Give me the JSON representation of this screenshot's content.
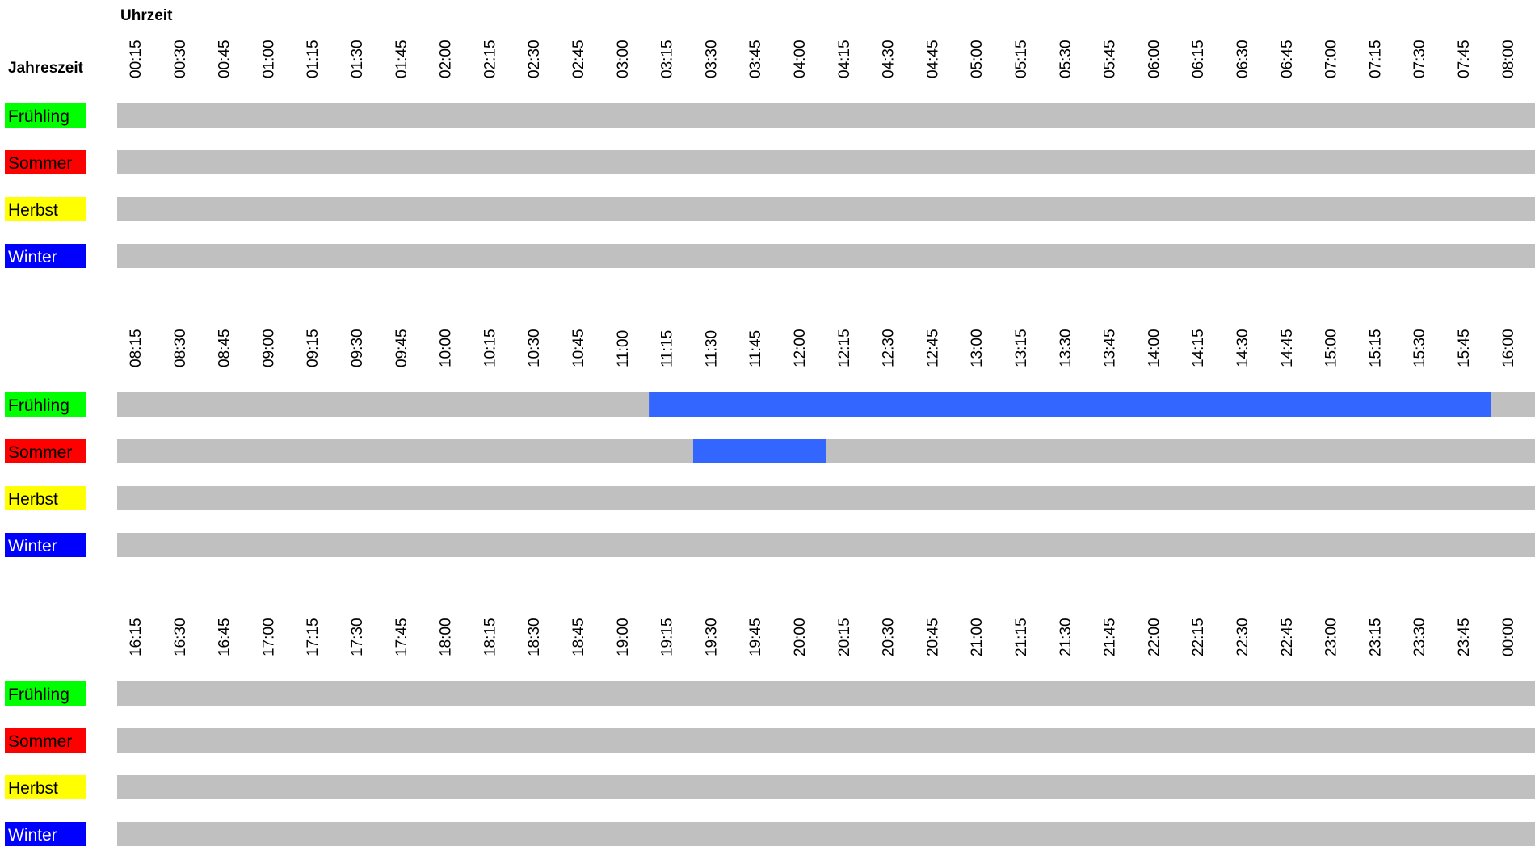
{
  "header": {
    "time_label": "Uhrzeit",
    "season_label": "Jahreszeit"
  },
  "seasons": [
    {
      "name": "Frühling",
      "bg": "#00ff00",
      "fg": "#000000"
    },
    {
      "name": "Sommer",
      "bg": "#ff0000",
      "fg": "#000000"
    },
    {
      "name": "Herbst",
      "bg": "#ffff00",
      "fg": "#000000"
    },
    {
      "name": "Winter",
      "bg": "#0000ff",
      "fg": "#ffffff"
    }
  ],
  "colors": {
    "empty_slot": "#c0c0c0",
    "active_slot": "#3366ff"
  },
  "chart_data": {
    "type": "heatmap",
    "x_unit": "time of day (15-minute slots)",
    "panels": [
      {
        "ticks": [
          "00:15",
          "00:30",
          "00:45",
          "01:00",
          "01:15",
          "01:30",
          "01:45",
          "02:00",
          "02:15",
          "02:30",
          "02:45",
          "03:00",
          "03:15",
          "03:30",
          "03:45",
          "04:00",
          "04:15",
          "04:30",
          "04:45",
          "05:00",
          "05:15",
          "05:30",
          "05:45",
          "06:00",
          "06:15",
          "06:30",
          "06:45",
          "07:00",
          "07:15",
          "07:30",
          "07:45",
          "08:00"
        ],
        "active": [
          {
            "season": "Frühling",
            "from": null,
            "to": null
          },
          {
            "season": "Sommer",
            "from": null,
            "to": null
          },
          {
            "season": "Herbst",
            "from": null,
            "to": null
          },
          {
            "season": "Winter",
            "from": null,
            "to": null
          }
        ]
      },
      {
        "ticks": [
          "08:15",
          "08:30",
          "08:45",
          "09:00",
          "09:15",
          "09:30",
          "09:45",
          "10:00",
          "10:15",
          "10:30",
          "10:45",
          "11:00",
          "11:15",
          "11:30",
          "11:45",
          "12:00",
          "12:15",
          "12:30",
          "12:45",
          "13:00",
          "13:15",
          "13:30",
          "13:45",
          "14:00",
          "14:15",
          "14:30",
          "14:45",
          "15:00",
          "15:15",
          "15:30",
          "15:45",
          "16:00"
        ],
        "active": [
          {
            "season": "Frühling",
            "from": "11:00",
            "to": "15:45"
          },
          {
            "season": "Sommer",
            "from": "11:15",
            "to": "12:00"
          },
          {
            "season": "Herbst",
            "from": null,
            "to": null
          },
          {
            "season": "Winter",
            "from": null,
            "to": null
          }
        ]
      },
      {
        "ticks": [
          "16:15",
          "16:30",
          "16:45",
          "17:00",
          "17:15",
          "17:30",
          "17:45",
          "18:00",
          "18:15",
          "18:30",
          "18:45",
          "19:00",
          "19:15",
          "19:30",
          "19:45",
          "20:00",
          "20:15",
          "20:30",
          "20:45",
          "21:00",
          "21:15",
          "21:30",
          "21:45",
          "22:00",
          "22:15",
          "22:30",
          "22:45",
          "23:00",
          "23:15",
          "23:30",
          "23:45",
          "00:00"
        ],
        "active": [
          {
            "season": "Frühling",
            "from": null,
            "to": null
          },
          {
            "season": "Sommer",
            "from": null,
            "to": null
          },
          {
            "season": "Herbst",
            "from": null,
            "to": null
          },
          {
            "season": "Winter",
            "from": null,
            "to": null
          }
        ]
      }
    ]
  }
}
